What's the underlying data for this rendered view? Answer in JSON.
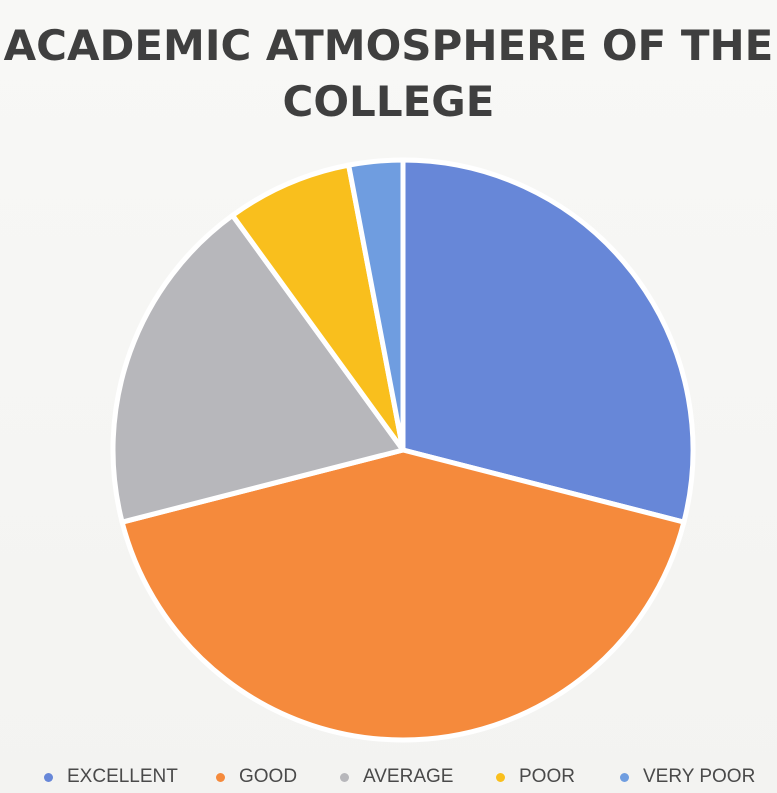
{
  "chart_data": {
    "type": "pie",
    "title": "ACADEMIC ATMOSPHERE OF THE COLLEGE",
    "categories": [
      "EXCELLENT",
      "GOOD",
      "AVERAGE",
      "POOR",
      "VERY POOR"
    ],
    "values": [
      29,
      42,
      19,
      7,
      3
    ],
    "colors": [
      "#6787d8",
      "#f58a3c",
      "#b7b7bb",
      "#f9bf1d",
      "#6f9de0"
    ],
    "legend_position": "bottom",
    "start_angle": "top",
    "direction": "clockwise"
  }
}
